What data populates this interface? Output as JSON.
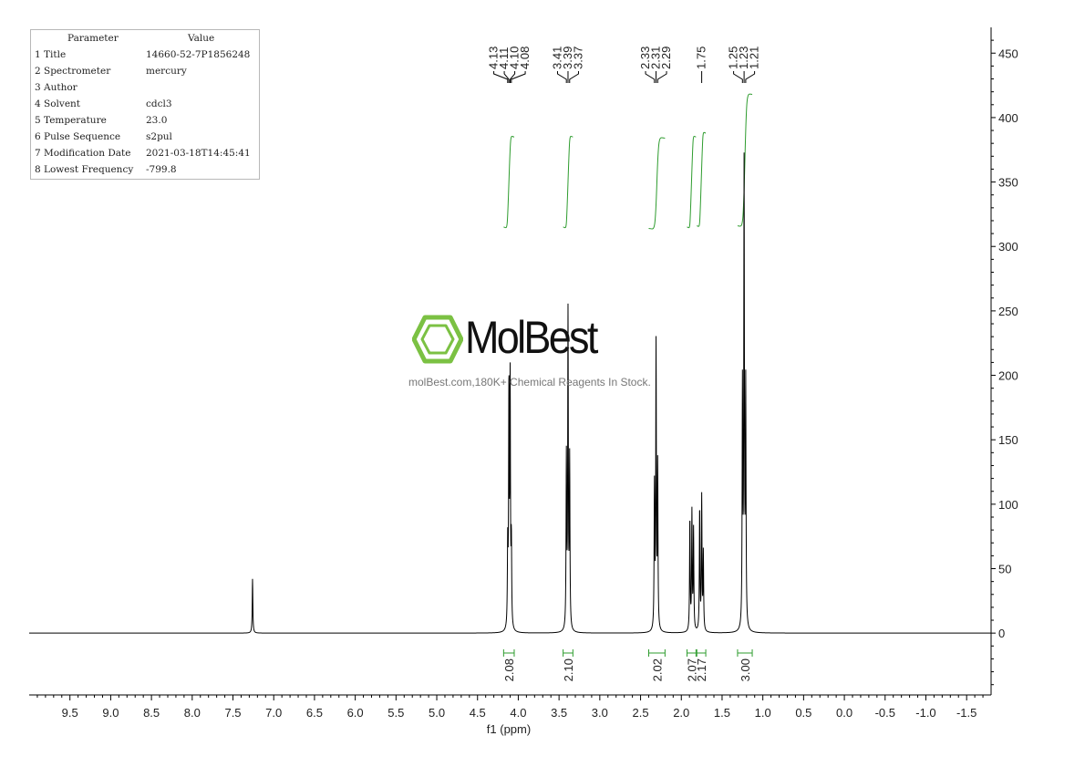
{
  "parameter_table": {
    "headers": [
      "Parameter",
      "Value"
    ],
    "rows": [
      [
        "1 Title",
        "14660-52-7P1856248"
      ],
      [
        "2 Spectrometer",
        "mercury"
      ],
      [
        "3 Author",
        ""
      ],
      [
        "4 Solvent",
        "cdcl3"
      ],
      [
        "5 Temperature",
        "23.0"
      ],
      [
        "6 Pulse Sequence",
        "s2pul"
      ],
      [
        "7 Modification Date",
        "2021-03-18T14:45:41"
      ],
      [
        "8 Lowest Frequency",
        "-799.8"
      ]
    ]
  },
  "watermark": {
    "name": "MolBest",
    "tagline": "molBest.com,180K+ Chemical Reagents In Stock.",
    "logo_icon": "benzene-ring-icon",
    "logo_color": "#7bc143"
  },
  "chart_data": {
    "type": "line",
    "xlabel": "f1 (ppm)",
    "ylabel": "",
    "xlim": [
      10.0,
      -1.8
    ],
    "ylim": [
      -48,
      470
    ],
    "x_reversed": true,
    "x_ticks": [
      "9.5",
      "9.0",
      "8.5",
      "8.0",
      "7.5",
      "7.0",
      "6.5",
      "6.0",
      "5.5",
      "5.0",
      "4.5",
      "4.0",
      "3.5",
      "3.0",
      "2.5",
      "2.0",
      "1.5",
      "1.0",
      "0.5",
      "0.0",
      "-0.5",
      "-1.0",
      "-1.5"
    ],
    "x_tick_values": [
      9.5,
      9.0,
      8.5,
      8.0,
      7.5,
      7.0,
      6.5,
      6.0,
      5.5,
      5.0,
      4.5,
      4.0,
      3.5,
      3.0,
      2.5,
      2.0,
      1.5,
      1.0,
      0.5,
      0.0,
      -0.5,
      -1.0,
      -1.5
    ],
    "y_axis_side": "right",
    "y_ticks": [
      "0",
      "50",
      "100",
      "150",
      "200",
      "250",
      "300",
      "350",
      "400",
      "450"
    ],
    "y_tick_values": [
      0,
      50,
      100,
      150,
      200,
      250,
      300,
      350,
      400,
      450
    ],
    "line_color": "#000000",
    "integral_color": "#2e9c2e",
    "peaks": [
      {
        "ppm": 7.26,
        "height": 42
      },
      {
        "ppm": 4.13,
        "height": 62
      },
      {
        "ppm": 4.115,
        "height": 185
      },
      {
        "ppm": 4.1,
        "height": 188
      },
      {
        "ppm": 4.085,
        "height": 65
      },
      {
        "ppm": 3.41,
        "height": 132
      },
      {
        "ppm": 3.39,
        "height": 243
      },
      {
        "ppm": 3.37,
        "height": 130
      },
      {
        "ppm": 2.33,
        "height": 110
      },
      {
        "ppm": 2.31,
        "height": 219
      },
      {
        "ppm": 2.29,
        "height": 126
      },
      {
        "ppm": 1.895,
        "height": 87
      },
      {
        "ppm": 1.87,
        "height": 91
      },
      {
        "ppm": 1.85,
        "height": 78
      },
      {
        "ppm": 1.775,
        "height": 95
      },
      {
        "ppm": 1.75,
        "height": 103
      },
      {
        "ppm": 1.73,
        "height": 60
      },
      {
        "ppm": 1.25,
        "height": 185
      },
      {
        "ppm": 1.23,
        "height": 355
      },
      {
        "ppm": 1.21,
        "height": 185
      }
    ],
    "peak_labels": [
      {
        "group": [
          "7.26"
        ],
        "ppm": [
          7.26
        ]
      },
      {
        "group": [
          "4.13",
          "4.11",
          "4.10",
          "4.08"
        ],
        "ppm": [
          4.13,
          4.115,
          4.1,
          4.085
        ]
      },
      {
        "group": [
          "3.41",
          "3.39",
          "3.37"
        ],
        "ppm": [
          3.41,
          3.39,
          3.37
        ]
      },
      {
        "group": [
          "2.33",
          "2.31",
          "2.29"
        ],
        "ppm": [
          2.33,
          2.31,
          2.29
        ]
      },
      {
        "group": [
          "1.75"
        ],
        "ppm": [
          1.75
        ]
      },
      {
        "group": [
          "1.25",
          "1.23",
          "1.21"
        ],
        "ppm": [
          1.25,
          1.23,
          1.21
        ]
      }
    ],
    "integrals": [
      {
        "value": "2.08",
        "from": 4.18,
        "to": 4.05,
        "curve_bottom": 315,
        "curve_top": 385
      },
      {
        "value": "2.10",
        "from": 3.45,
        "to": 3.33,
        "curve_bottom": 315,
        "curve_top": 385
      },
      {
        "value": "2.02",
        "from": 2.4,
        "to": 2.2,
        "curve_bottom": 314,
        "curve_top": 384
      },
      {
        "value": "2.07",
        "from": 1.93,
        "to": 1.82,
        "curve_bottom": 315,
        "curve_top": 385
      },
      {
        "value": "2.17",
        "from": 1.81,
        "to": 1.7,
        "curve_bottom": 316,
        "curve_top": 388
      },
      {
        "value": "3.00",
        "from": 1.31,
        "to": 1.13,
        "curve_bottom": 316,
        "curve_top": 418
      }
    ]
  }
}
